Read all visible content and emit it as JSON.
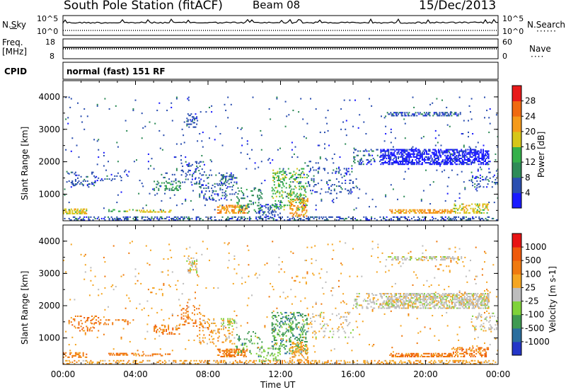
{
  "header": {
    "station": "South Pole Station (fitACF)",
    "beam": "Beam 08",
    "date": "15/Dec/2013"
  },
  "status_panels": {
    "nsky_label": "N.Sky",
    "nsearch_label": "N.Search",
    "nsky_ticks": [
      "10^5",
      "10^0"
    ],
    "nsearch_ticks": [
      "10^5",
      "10^0"
    ],
    "freq_label": "Freq.",
    "freq_unit": "[MHz]",
    "freq_ticks": [
      "18",
      "8"
    ],
    "nave_label": "Nave",
    "nave_ticks": [
      "60",
      "0"
    ],
    "cpid_label": "CPID",
    "cpid_value": "normal (fast) 151 RF"
  },
  "chart_data": [
    {
      "type": "heatmap",
      "name": "power",
      "xlabel": "",
      "ylabel": "Slant Range [km]",
      "xlim": [
        0,
        24
      ],
      "ylim": [
        180,
        4500
      ],
      "y_ticks": [
        "1000",
        "2000",
        "3000",
        "4000"
      ],
      "colorbar_label": "Power [dB]",
      "colorbar_ticks": [
        "4",
        "8",
        "12",
        "16",
        "20",
        "24",
        "28"
      ],
      "colorbar_colors": [
        "#1a1aff",
        "#2b4fb0",
        "#2e8b57",
        "#35b04a",
        "#d6c619",
        "#f59a1a",
        "#f06a10",
        "#e81a1a"
      ]
    },
    {
      "type": "heatmap",
      "name": "velocity",
      "xlabel": "Time UT",
      "ylabel": "Slant Range [km]",
      "xlim": [
        0,
        24
      ],
      "ylim": [
        180,
        4500
      ],
      "x_ticks": [
        "00:00",
        "04:00",
        "08:00",
        "12:00",
        "16:00",
        "20:00",
        "00:00"
      ],
      "y_ticks": [
        "1000",
        "2000",
        "3000",
        "4000"
      ],
      "colorbar_label": "Velocity [m s-1]",
      "colorbar_ticks": [
        "1000",
        "500",
        "100",
        "25",
        "-25",
        "-100",
        "-500",
        "-1000"
      ],
      "colorbar_colors": [
        "#2436c8",
        "#2a6e9e",
        "#3f9a52",
        "#7fd23a",
        "#bdbdbd",
        "#f5a623",
        "#f07a10",
        "#ef5a0c",
        "#e81414"
      ]
    }
  ]
}
